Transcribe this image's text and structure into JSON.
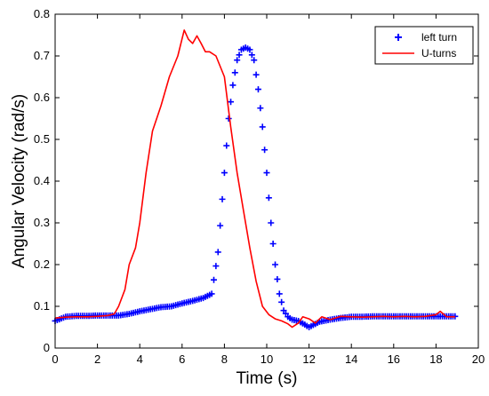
{
  "chart_data": {
    "type": "line",
    "title": "",
    "xlabel": "Time (s)",
    "ylabel": "Angular Velocity (rad/s)",
    "xlim": [
      0,
      20
    ],
    "ylim": [
      0,
      0.8
    ],
    "xticks": [
      "0",
      "2",
      "4",
      "6",
      "8",
      "10",
      "12",
      "14",
      "16",
      "18",
      "20"
    ],
    "yticks": [
      "0",
      "0.1",
      "0.2",
      "0.3",
      "0.4",
      "0.5",
      "0.6",
      "0.7",
      "0.8"
    ],
    "grid": false,
    "legend_position": "top-right",
    "series": [
      {
        "name": "left turn",
        "style": "markers",
        "marker": "+",
        "color": "#0000ff",
        "x": [
          0,
          0.5,
          1,
          1.5,
          2,
          2.5,
          3,
          3.5,
          4,
          4.5,
          5,
          5.5,
          6,
          6.5,
          7,
          7.4,
          7.7,
          8,
          8.2,
          8.4,
          8.6,
          8.8,
          9,
          9.2,
          9.4,
          9.6,
          9.8,
          10,
          10.2,
          10.4,
          10.6,
          10.8,
          11,
          11.2,
          11.5,
          12,
          12.5,
          13,
          13.5,
          14,
          14.5,
          15,
          15.5,
          16,
          16.5,
          17,
          17.5,
          18,
          18.5,
          18.9
        ],
        "y": [
          0.065,
          0.075,
          0.077,
          0.077,
          0.078,
          0.078,
          0.078,
          0.082,
          0.088,
          0.093,
          0.098,
          0.1,
          0.107,
          0.113,
          0.12,
          0.13,
          0.23,
          0.42,
          0.55,
          0.63,
          0.69,
          0.715,
          0.72,
          0.715,
          0.69,
          0.62,
          0.53,
          0.42,
          0.3,
          0.2,
          0.13,
          0.09,
          0.075,
          0.068,
          0.065,
          0.05,
          0.063,
          0.068,
          0.072,
          0.075,
          0.075,
          0.076,
          0.076,
          0.076,
          0.076,
          0.076,
          0.076,
          0.076,
          0.076,
          0.076
        ]
      },
      {
        "name": "U-turns",
        "style": "line",
        "color": "#ff0000",
        "x": [
          0,
          0.5,
          1,
          1.5,
          2,
          2.5,
          2.8,
          3,
          3.3,
          3.5,
          3.8,
          4,
          4.3,
          4.6,
          5,
          5.4,
          5.8,
          6.1,
          6.3,
          6.5,
          6.7,
          6.9,
          7.1,
          7.3,
          7.6,
          8,
          8.3,
          8.6,
          8.9,
          9.2,
          9.5,
          9.8,
          10.1,
          10.4,
          10.7,
          11,
          11.2,
          11.5,
          11.7,
          12,
          12.3,
          12.6,
          13,
          13.5,
          14,
          14.5,
          15,
          15.5,
          16,
          16.5,
          17,
          17.5,
          18,
          18.2,
          18.5,
          18.9
        ],
        "y": [
          0.072,
          0.074,
          0.075,
          0.075,
          0.076,
          0.078,
          0.082,
          0.1,
          0.14,
          0.2,
          0.24,
          0.3,
          0.42,
          0.52,
          0.58,
          0.65,
          0.7,
          0.762,
          0.74,
          0.73,
          0.748,
          0.73,
          0.71,
          0.71,
          0.7,
          0.65,
          0.53,
          0.42,
          0.33,
          0.24,
          0.16,
          0.1,
          0.08,
          0.07,
          0.065,
          0.058,
          0.05,
          0.06,
          0.075,
          0.07,
          0.06,
          0.075,
          0.068,
          0.076,
          0.075,
          0.074,
          0.075,
          0.076,
          0.075,
          0.076,
          0.075,
          0.076,
          0.08,
          0.088,
          0.075,
          0.075
        ]
      }
    ]
  }
}
